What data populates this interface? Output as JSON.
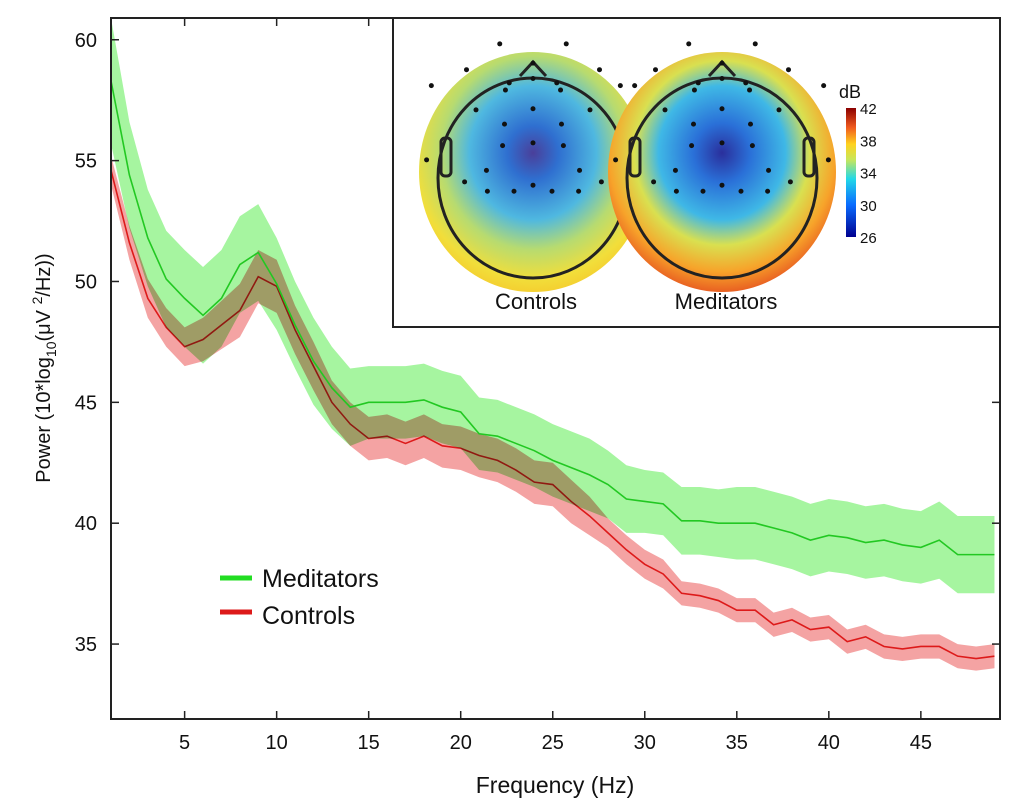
{
  "chart_data": {
    "type": "line",
    "xlabel": "Frequency (Hz)",
    "ylabel": {
      "prefix": "Power (10*log",
      "sub": "10",
      "mid": "(μV ",
      "sup": "2",
      "suffix": "/Hz))"
    },
    "xlim": [
      1,
      49.3
    ],
    "ylim": [
      31.9,
      60.9
    ],
    "xticks": [
      5,
      10,
      15,
      20,
      25,
      30,
      35,
      40,
      45
    ],
    "yticks": [
      35,
      40,
      45,
      50,
      55,
      60
    ],
    "grid": false,
    "legend_placement": "lower-left",
    "x": [
      1,
      2,
      3,
      4,
      5,
      6,
      7,
      8,
      9,
      10,
      11,
      12,
      13,
      14,
      15,
      16,
      17,
      18,
      19,
      20,
      21,
      22,
      23,
      24,
      25,
      26,
      27,
      28,
      29,
      30,
      31,
      32,
      33,
      34,
      35,
      36,
      37,
      38,
      39,
      40,
      41,
      42,
      43,
      44,
      45,
      46,
      47,
      48,
      49
    ],
    "series": [
      {
        "name": "Controls",
        "color": "#dd1a1a",
        "fill": "#f4a3a3",
        "values": [
          54.6,
          51.6,
          49.3,
          48.1,
          47.3,
          47.6,
          48.2,
          48.8,
          50.2,
          49.8,
          48.0,
          46.5,
          45.0,
          44.1,
          43.5,
          43.6,
          43.3,
          43.6,
          43.2,
          43.1,
          42.8,
          42.6,
          42.2,
          41.7,
          41.6,
          40.9,
          40.3,
          39.6,
          38.9,
          38.3,
          37.9,
          37.1,
          37.0,
          36.8,
          36.4,
          36.4,
          35.8,
          36.0,
          35.6,
          35.7,
          35.1,
          35.3,
          34.9,
          34.8,
          34.9,
          34.9,
          34.5,
          34.4,
          34.5
        ],
        "halfwidth": [
          0.6,
          0.7,
          0.8,
          0.8,
          0.8,
          0.9,
          1.0,
          1.1,
          1.1,
          1.1,
          1.0,
          1.0,
          0.9,
          0.9,
          0.9,
          0.9,
          0.9,
          0.9,
          0.9,
          0.9,
          0.9,
          0.9,
          0.9,
          0.9,
          0.9,
          0.9,
          0.8,
          0.6,
          0.6,
          0.6,
          0.6,
          0.5,
          0.5,
          0.5,
          0.5,
          0.5,
          0.5,
          0.5,
          0.5,
          0.5,
          0.5,
          0.5,
          0.5,
          0.5,
          0.5,
          0.5,
          0.5,
          0.5,
          0.5
        ]
      },
      {
        "name": "Meditators",
        "color": "#22c822",
        "fill": "#a6f5a0",
        "values": [
          58.3,
          54.4,
          51.8,
          50.1,
          49.3,
          48.6,
          49.3,
          50.7,
          51.2,
          49.9,
          48.2,
          46.7,
          45.6,
          44.8,
          45.0,
          45.0,
          45.0,
          45.1,
          44.8,
          44.6,
          43.7,
          43.6,
          43.3,
          43.0,
          42.6,
          42.3,
          42.0,
          41.6,
          41.0,
          40.9,
          40.8,
          40.1,
          40.1,
          40.0,
          40.0,
          40.0,
          39.8,
          39.6,
          39.3,
          39.5,
          39.4,
          39.2,
          39.3,
          39.1,
          39.0,
          39.3,
          38.7,
          38.7,
          38.7
        ],
        "halfwidth": [
          2.6,
          2.2,
          2.0,
          2.0,
          2.0,
          2.0,
          2.0,
          2.0,
          2.0,
          1.9,
          1.8,
          1.8,
          1.7,
          1.6,
          1.5,
          1.5,
          1.5,
          1.5,
          1.5,
          1.5,
          1.5,
          1.5,
          1.5,
          1.5,
          1.5,
          1.5,
          1.5,
          1.4,
          1.4,
          1.3,
          1.3,
          1.4,
          1.4,
          1.4,
          1.5,
          1.5,
          1.5,
          1.5,
          1.5,
          1.5,
          1.5,
          1.5,
          1.5,
          1.5,
          1.5,
          1.6,
          1.6,
          1.6,
          1.6
        ]
      }
    ],
    "legend": [
      {
        "label": "Meditators",
        "color": "#22dd22"
      },
      {
        "label": "Controls",
        "color": "#dd1a1a"
      }
    ],
    "inset": {
      "type": "heatmap",
      "maps": [
        {
          "label": "Controls"
        },
        {
          "label": "Meditators"
        }
      ],
      "colorbar": {
        "title": "dB",
        "ticks": [
          42,
          38,
          34,
          30,
          26
        ],
        "range": [
          26,
          42
        ]
      }
    }
  }
}
